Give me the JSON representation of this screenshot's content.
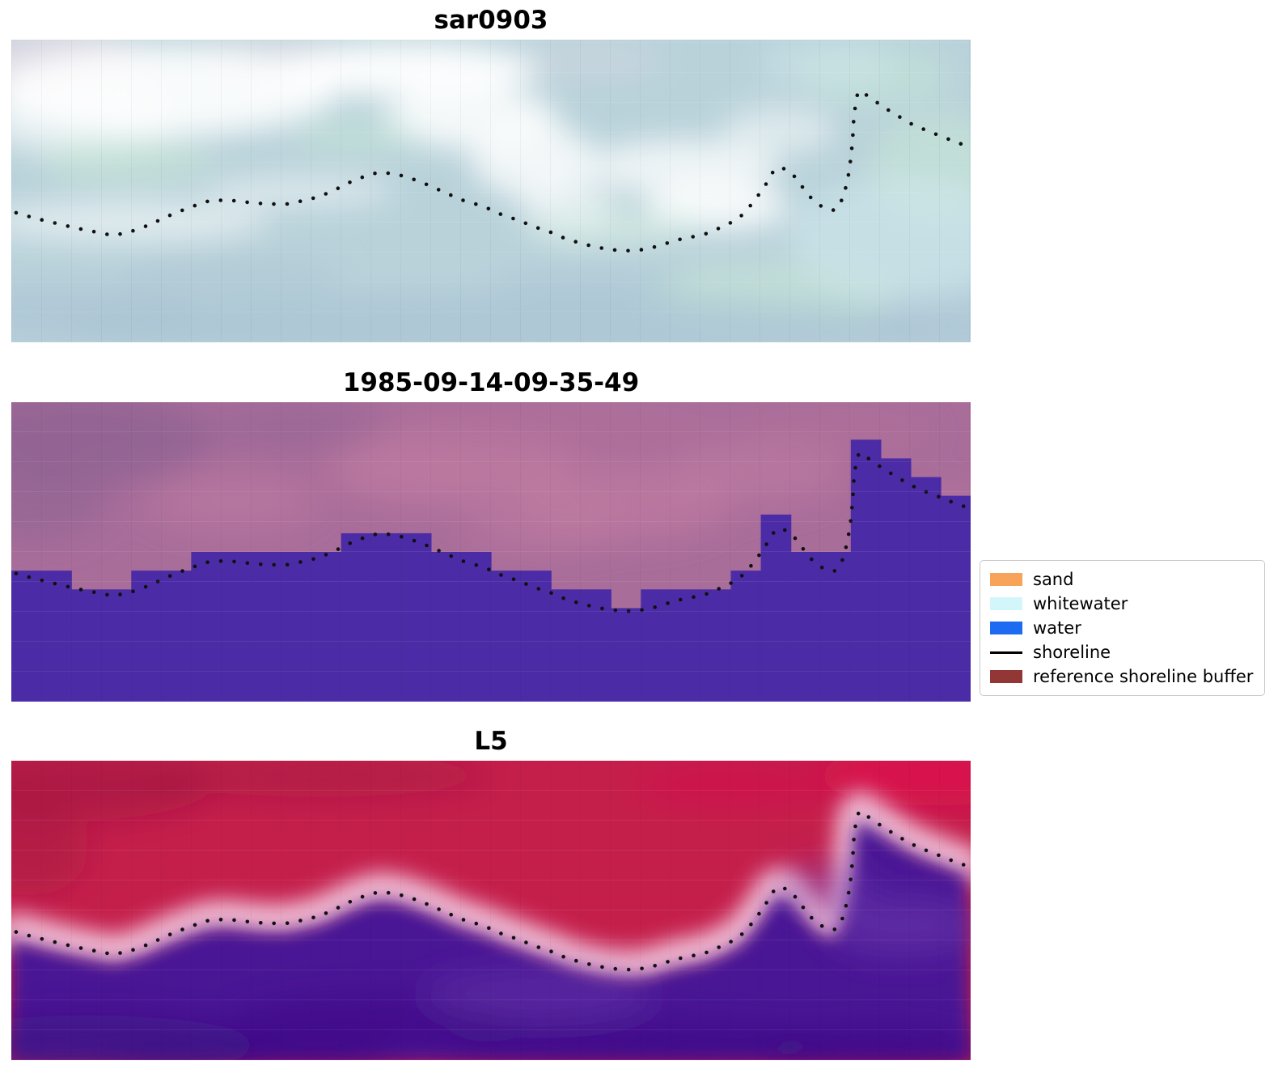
{
  "figure": {
    "panels": [
      {
        "id": "sar0903",
        "title": "sar0903",
        "palette": {
          "base": "#b9d2da",
          "white": "#ffffff",
          "pink": "#e8d9e6",
          "green": "#c8e8d6",
          "cyan": "#cfe7ec",
          "bluegray": "#a9c2d3"
        }
      },
      {
        "id": "classification",
        "title": "1985-09-14-09-35-49",
        "palette": {
          "base": "#a96d9a",
          "dark": "#8c6292",
          "lightpink": "#c680a3",
          "rose": "#b47299",
          "water": "#4b2ca6"
        }
      },
      {
        "id": "l5",
        "title": "L5",
        "palette": {
          "base": "#c41f4b",
          "darkred": "#9d1540",
          "crimson": "#dc0f4e",
          "halo": "#e9a8c6",
          "halo2": "#f6d2e0",
          "water": "#4a1295",
          "deeppurple": "#3a0b82",
          "violet": "#6d3cae"
        }
      }
    ]
  },
  "legend": {
    "items": [
      {
        "label": "sand",
        "type": "patch",
        "color": "#f7a35a"
      },
      {
        "label": "whitewater",
        "type": "patch",
        "color": "#d2f6fa"
      },
      {
        "label": "water",
        "type": "patch",
        "color": "#1c6bf0"
      },
      {
        "label": "shoreline",
        "type": "line",
        "color": "#000000"
      },
      {
        "label": "reference shoreline buffer",
        "type": "patch",
        "color": "#933636"
      }
    ]
  },
  "chart_data": {
    "type": "scatter",
    "title": "",
    "panel_titles": [
      "sar0903",
      "1985-09-14-09-35-49",
      "L5"
    ],
    "axes": "off",
    "coordinates": "normalized panel fractions, y increases downward",
    "legend_entries": [
      "sand",
      "whitewater",
      "water",
      "shoreline",
      "reference shoreline buffer"
    ],
    "series": [
      {
        "name": "shoreline",
        "style": "dotted-black",
        "x": [
          0.005,
          0.026,
          0.047,
          0.068,
          0.089,
          0.106,
          0.123,
          0.144,
          0.161,
          0.182,
          0.203,
          0.224,
          0.245,
          0.266,
          0.287,
          0.304,
          0.321,
          0.338,
          0.355,
          0.372,
          0.384,
          0.401,
          0.418,
          0.435,
          0.452,
          0.469,
          0.486,
          0.498,
          0.511,
          0.528,
          0.545,
          0.562,
          0.578,
          0.595,
          0.612,
          0.629,
          0.646,
          0.663,
          0.68,
          0.692,
          0.709,
          0.722,
          0.734,
          0.747,
          0.76,
          0.772,
          0.785,
          0.793,
          0.799,
          0.808,
          0.817,
          0.827,
          0.836,
          0.847,
          0.858,
          0.867,
          0.872,
          0.875,
          0.877,
          0.878,
          0.88,
          0.882,
          0.885,
          0.89,
          0.897,
          0.908,
          0.922,
          0.938,
          0.954,
          0.97,
          0.984,
          0.995
        ],
        "y": [
          0.572,
          0.591,
          0.607,
          0.623,
          0.636,
          0.647,
          0.636,
          0.612,
          0.586,
          0.559,
          0.535,
          0.529,
          0.537,
          0.543,
          0.543,
          0.532,
          0.519,
          0.495,
          0.468,
          0.447,
          0.438,
          0.444,
          0.46,
          0.481,
          0.505,
          0.529,
          0.545,
          0.559,
          0.578,
          0.596,
          0.618,
          0.636,
          0.658,
          0.674,
          0.687,
          0.695,
          0.698,
          0.692,
          0.676,
          0.663,
          0.652,
          0.644,
          0.628,
          0.61,
          0.585,
          0.543,
          0.487,
          0.441,
          0.422,
          0.428,
          0.454,
          0.497,
          0.532,
          0.556,
          0.564,
          0.524,
          0.46,
          0.395,
          0.33,
          0.27,
          0.215,
          0.18,
          0.168,
          0.18,
          0.196,
          0.22,
          0.248,
          0.278,
          0.3,
          0.32,
          0.338,
          0.35
        ]
      }
    ]
  }
}
